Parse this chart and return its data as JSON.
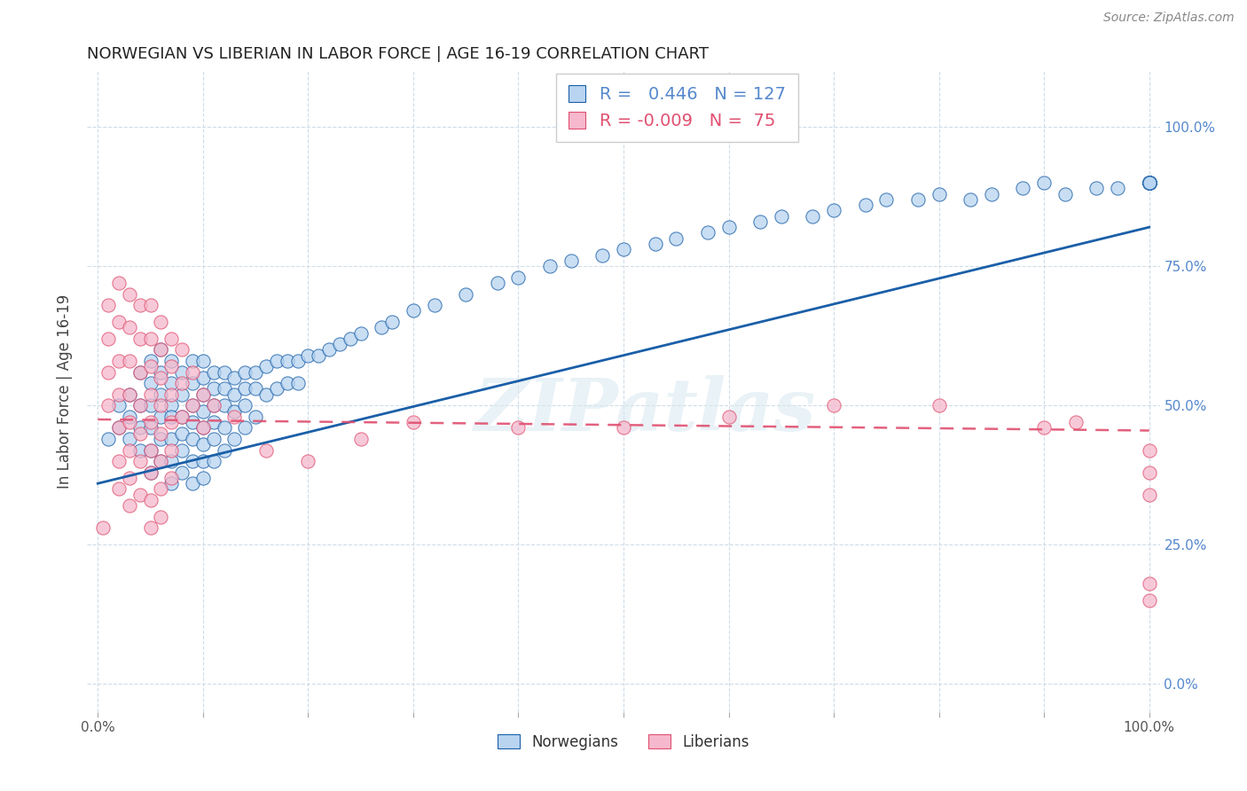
{
  "title": "NORWEGIAN VS LIBERIAN IN LABOR FORCE | AGE 16-19 CORRELATION CHART",
  "source": "Source: ZipAtlas.com",
  "ylabel": "In Labor Force | Age 16-19",
  "watermark": "ZIPatlas",
  "norwegian_R": 0.446,
  "norwegian_N": 127,
  "liberian_R": -0.009,
  "liberian_N": 75,
  "norwegian_color": "#b8d4f0",
  "liberian_color": "#f5b8cc",
  "line_norwegian_color": "#1a5fa8",
  "line_liberian_color": "#e05070",
  "background_color": "#ffffff",
  "grid_color": "#d0dde8",
  "xlim": [
    0.0,
    1.0
  ],
  "ylim": [
    -0.05,
    1.05
  ],
  "nor_trend_x0": 0.0,
  "nor_trend_y0": 0.36,
  "nor_trend_x1": 1.0,
  "nor_trend_y1": 0.82,
  "lib_trend_x0": 0.0,
  "lib_trend_y0": 0.475,
  "lib_trend_x1": 1.0,
  "lib_trend_y1": 0.455,
  "norwegian_x": [
    0.01,
    0.02,
    0.02,
    0.03,
    0.03,
    0.03,
    0.04,
    0.04,
    0.04,
    0.04,
    0.05,
    0.05,
    0.05,
    0.05,
    0.05,
    0.05,
    0.06,
    0.06,
    0.06,
    0.06,
    0.06,
    0.06,
    0.07,
    0.07,
    0.07,
    0.07,
    0.07,
    0.07,
    0.07,
    0.08,
    0.08,
    0.08,
    0.08,
    0.08,
    0.08,
    0.09,
    0.09,
    0.09,
    0.09,
    0.09,
    0.09,
    0.09,
    0.1,
    0.1,
    0.1,
    0.1,
    0.1,
    0.1,
    0.1,
    0.1,
    0.11,
    0.11,
    0.11,
    0.11,
    0.11,
    0.11,
    0.12,
    0.12,
    0.12,
    0.12,
    0.12,
    0.13,
    0.13,
    0.13,
    0.13,
    0.14,
    0.14,
    0.14,
    0.14,
    0.15,
    0.15,
    0.15,
    0.16,
    0.16,
    0.17,
    0.17,
    0.18,
    0.18,
    0.19,
    0.19,
    0.2,
    0.21,
    0.22,
    0.23,
    0.24,
    0.25,
    0.27,
    0.28,
    0.3,
    0.32,
    0.35,
    0.38,
    0.4,
    0.43,
    0.45,
    0.48,
    0.5,
    0.53,
    0.55,
    0.58,
    0.6,
    0.63,
    0.65,
    0.68,
    0.7,
    0.73,
    0.75,
    0.78,
    0.8,
    0.83,
    0.85,
    0.88,
    0.9,
    0.92,
    0.95,
    0.97,
    1.0,
    1.0,
    1.0,
    1.0,
    1.0,
    1.0,
    1.0,
    1.0,
    1.0,
    1.0,
    1.0
  ],
  "norwegian_y": [
    0.44,
    0.5,
    0.46,
    0.52,
    0.48,
    0.44,
    0.56,
    0.5,
    0.46,
    0.42,
    0.58,
    0.54,
    0.5,
    0.46,
    0.42,
    0.38,
    0.6,
    0.56,
    0.52,
    0.48,
    0.44,
    0.4,
    0.58,
    0.54,
    0.5,
    0.48,
    0.44,
    0.4,
    0.36,
    0.56,
    0.52,
    0.48,
    0.45,
    0.42,
    0.38,
    0.58,
    0.54,
    0.5,
    0.47,
    0.44,
    0.4,
    0.36,
    0.58,
    0.55,
    0.52,
    0.49,
    0.46,
    0.43,
    0.4,
    0.37,
    0.56,
    0.53,
    0.5,
    0.47,
    0.44,
    0.4,
    0.56,
    0.53,
    0.5,
    0.46,
    0.42,
    0.55,
    0.52,
    0.49,
    0.44,
    0.56,
    0.53,
    0.5,
    0.46,
    0.56,
    0.53,
    0.48,
    0.57,
    0.52,
    0.58,
    0.53,
    0.58,
    0.54,
    0.58,
    0.54,
    0.59,
    0.59,
    0.6,
    0.61,
    0.62,
    0.63,
    0.64,
    0.65,
    0.67,
    0.68,
    0.7,
    0.72,
    0.73,
    0.75,
    0.76,
    0.77,
    0.78,
    0.79,
    0.8,
    0.81,
    0.82,
    0.83,
    0.84,
    0.84,
    0.85,
    0.86,
    0.87,
    0.87,
    0.88,
    0.87,
    0.88,
    0.89,
    0.9,
    0.88,
    0.89,
    0.89,
    0.9,
    0.9,
    0.9,
    0.9,
    0.9,
    0.9,
    0.9,
    0.9,
    0.9,
    0.9,
    0.9
  ],
  "liberian_x": [
    0.005,
    0.01,
    0.01,
    0.01,
    0.01,
    0.02,
    0.02,
    0.02,
    0.02,
    0.02,
    0.02,
    0.02,
    0.03,
    0.03,
    0.03,
    0.03,
    0.03,
    0.03,
    0.03,
    0.03,
    0.04,
    0.04,
    0.04,
    0.04,
    0.04,
    0.04,
    0.04,
    0.05,
    0.05,
    0.05,
    0.05,
    0.05,
    0.05,
    0.05,
    0.05,
    0.05,
    0.06,
    0.06,
    0.06,
    0.06,
    0.06,
    0.06,
    0.06,
    0.06,
    0.07,
    0.07,
    0.07,
    0.07,
    0.07,
    0.07,
    0.08,
    0.08,
    0.08,
    0.09,
    0.09,
    0.1,
    0.1,
    0.11,
    0.13,
    0.16,
    0.2,
    0.25,
    0.3,
    0.4,
    0.5,
    0.6,
    0.7,
    0.8,
    0.9,
    0.93,
    1.0,
    1.0,
    1.0,
    1.0,
    1.0
  ],
  "liberian_y": [
    0.28,
    0.68,
    0.62,
    0.56,
    0.5,
    0.72,
    0.65,
    0.58,
    0.52,
    0.46,
    0.4,
    0.35,
    0.7,
    0.64,
    0.58,
    0.52,
    0.47,
    0.42,
    0.37,
    0.32,
    0.68,
    0.62,
    0.56,
    0.5,
    0.45,
    0.4,
    0.34,
    0.68,
    0.62,
    0.57,
    0.52,
    0.47,
    0.42,
    0.38,
    0.33,
    0.28,
    0.65,
    0.6,
    0.55,
    0.5,
    0.45,
    0.4,
    0.35,
    0.3,
    0.62,
    0.57,
    0.52,
    0.47,
    0.42,
    0.37,
    0.6,
    0.54,
    0.48,
    0.56,
    0.5,
    0.52,
    0.46,
    0.5,
    0.48,
    0.42,
    0.4,
    0.44,
    0.47,
    0.46,
    0.46,
    0.48,
    0.5,
    0.5,
    0.46,
    0.47,
    0.42,
    0.38,
    0.34,
    0.18,
    0.15
  ]
}
